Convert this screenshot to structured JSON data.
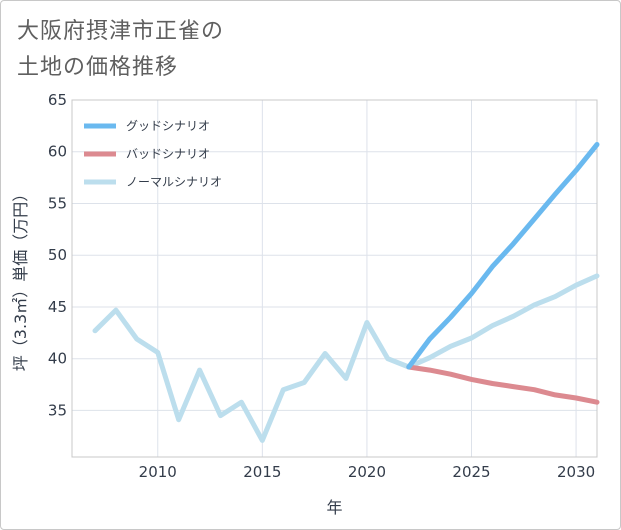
{
  "chart_data": {
    "type": "line",
    "title": [
      "大阪府摂津市正雀の",
      "土地の価格推移"
    ],
    "xlabel": "年",
    "ylabel": "坪（3.3㎡）単価（万円）",
    "xlim": [
      2005.9,
      2031
    ],
    "ylim": [
      30.5,
      65
    ],
    "x_ticks": [
      2010,
      2015,
      2020,
      2025,
      2030
    ],
    "y_ticks": [
      35,
      40,
      45,
      50,
      55,
      60,
      65
    ],
    "grid": true,
    "legend_position": "top-left",
    "series": [
      {
        "name": "グッドシナリオ",
        "color": "#6ab9ef",
        "x": [
          2022,
          2023,
          2024,
          2025,
          2026,
          2027,
          2028,
          2029,
          2030,
          2031
        ],
        "values": [
          39.2,
          41.9,
          44.0,
          46.3,
          48.9,
          51.1,
          53.5,
          55.9,
          58.2,
          60.7
        ]
      },
      {
        "name": "バッドシナリオ",
        "color": "#dc8a90",
        "x": [
          2022,
          2023,
          2024,
          2025,
          2026,
          2027,
          2028,
          2029,
          2030,
          2031
        ],
        "values": [
          39.2,
          38.9,
          38.5,
          38.0,
          37.6,
          37.3,
          37.0,
          36.5,
          36.2,
          35.8
        ]
      },
      {
        "name": "ノーマルシナリオ",
        "color": "#bcdeed",
        "x": [
          2007,
          2008,
          2009,
          2010,
          2011,
          2012,
          2013,
          2014,
          2015,
          2016,
          2017,
          2018,
          2019,
          2020,
          2021,
          2022,
          2023,
          2024,
          2025,
          2026,
          2027,
          2028,
          2029,
          2030,
          2031
        ],
        "values": [
          42.7,
          44.7,
          41.9,
          40.6,
          34.1,
          38.9,
          34.5,
          35.8,
          32.1,
          37.0,
          37.7,
          40.5,
          38.1,
          43.5,
          40.0,
          39.2,
          40.1,
          41.2,
          42.0,
          43.2,
          44.1,
          45.2,
          46.0,
          47.1,
          48.0
        ]
      }
    ]
  }
}
